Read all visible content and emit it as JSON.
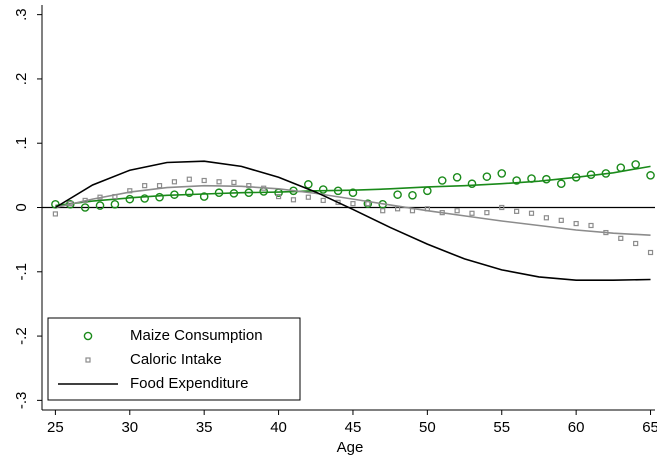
{
  "chart_data": {
    "type": "scatter-fit",
    "xlabel": "Age",
    "x": [
      25,
      26,
      27,
      28,
      29,
      30,
      31,
      32,
      33,
      34,
      35,
      36,
      37,
      38,
      39,
      40,
      41,
      42,
      43,
      44,
      45,
      46,
      47,
      48,
      49,
      50,
      51,
      52,
      53,
      54,
      55,
      56,
      57,
      58,
      59,
      60,
      61,
      62,
      63,
      64,
      65
    ],
    "fit_x": [
      25,
      27.5,
      30,
      32.5,
      35,
      37.5,
      40,
      42.5,
      45,
      47.5,
      50,
      52.5,
      55,
      57.5,
      60,
      62.5,
      65
    ],
    "series": [
      {
        "name": "Maize Consumption",
        "color": "#1a8a1a",
        "marker": "circle",
        "values": [
          0.005,
          0.005,
          0.0,
          0.003,
          0.005,
          0.013,
          0.014,
          0.016,
          0.02,
          0.023,
          0.017,
          0.023,
          0.022,
          0.023,
          0.025,
          0.023,
          0.026,
          0.036,
          0.028,
          0.026,
          0.023,
          0.006,
          0.005,
          0.02,
          0.019,
          0.026,
          0.042,
          0.047,
          0.037,
          0.048,
          0.053,
          0.042,
          0.045,
          0.044,
          0.037,
          0.047,
          0.051,
          0.053,
          0.062,
          0.067,
          0.05
        ],
        "fit": [
          0.003,
          0.01,
          0.015,
          0.019,
          0.021,
          0.023,
          0.024,
          0.026,
          0.027,
          0.029,
          0.032,
          0.034,
          0.037,
          0.041,
          0.047,
          0.054,
          0.064
        ]
      },
      {
        "name": "Caloric Intake",
        "color": "#8c8c8c",
        "marker": "square",
        "values": [
          -0.01,
          0.006,
          0.011,
          0.016,
          0.017,
          0.026,
          0.034,
          0.034,
          0.04,
          0.044,
          0.042,
          0.04,
          0.039,
          0.034,
          0.03,
          0.017,
          0.012,
          0.016,
          0.011,
          0.008,
          0.006,
          0.006,
          -0.005,
          -0.002,
          -0.005,
          -0.002,
          -0.008,
          -0.005,
          -0.009,
          -0.008,
          0,
          -0.006,
          -0.009,
          -0.016,
          -0.02,
          -0.025,
          -0.028,
          -0.039,
          -0.048,
          -0.056,
          -0.07
        ],
        "fit": [
          0.0,
          0.013,
          0.024,
          0.031,
          0.034,
          0.033,
          0.029,
          0.022,
          0.013,
          0.004,
          -0.005,
          -0.013,
          -0.021,
          -0.028,
          -0.035,
          -0.04,
          -0.043
        ]
      },
      {
        "name": "Food Expenditure",
        "color": "#000000",
        "marker": "line",
        "fit": [
          0.0,
          0.035,
          0.058,
          0.07,
          0.072,
          0.064,
          0.047,
          0.024,
          -0.003,
          -0.031,
          -0.057,
          -0.08,
          -0.097,
          -0.108,
          -0.113,
          -0.113,
          -0.112
        ]
      }
    ],
    "hline": 0,
    "xlim": [
      24.1,
      65.3
    ],
    "ylim": [
      -0.315,
      0.315
    ],
    "xticks": [
      25,
      30,
      35,
      40,
      45,
      50,
      55,
      60,
      65
    ],
    "yticks": [
      {
        "value": -0.3,
        "label": "-.3"
      },
      {
        "value": -0.2,
        "label": "-.2"
      },
      {
        "value": -0.1,
        "label": "-.1"
      },
      0,
      {
        "value": 0.1,
        "label": ".1"
      },
      {
        "value": 0.2,
        "label": ".2"
      },
      {
        "value": 0.3,
        "label": ".3"
      }
    ],
    "legend": "bottom-left"
  }
}
